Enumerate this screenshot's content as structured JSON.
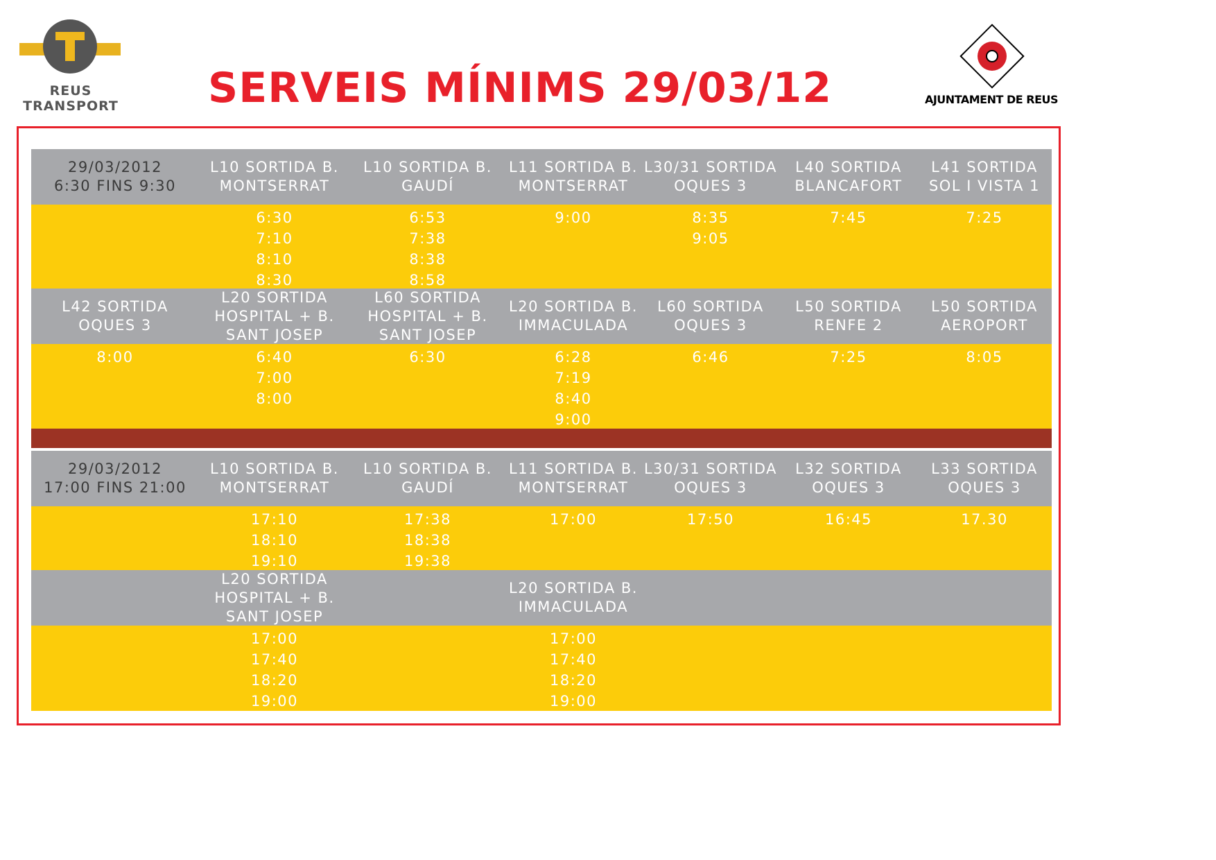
{
  "header": {
    "left_logo": {
      "line1": "REUS",
      "line2": "TRANSPORT"
    },
    "title": "SERVEIS MÍNIMS 29/03/12",
    "right_logo": {
      "label": "AJUNTAMENT DE REUS"
    }
  },
  "colors": {
    "title_red": "#e8202a",
    "frame_red": "#e8202a",
    "header_gray": "#a7a8ab",
    "row_yellow": "#fccc0a",
    "divider_brown": "#9c3324",
    "logo_gray": "#555555",
    "logo_yellow": "#f0b81e"
  },
  "morning": {
    "date": "29/03/2012",
    "range": "6:30 FINS 9:30",
    "block1": {
      "lines": [
        "L10 SORTIDA B. MONTSERRAT",
        "L10 SORTIDA B. GAUDÍ",
        "L11 SORTIDA B. MONTSERRAT",
        "L30/31 SORTIDA OQUES 3",
        "L40 SORTIDA BLANCAFORT",
        "L41 SORTIDA SOL I VISTA 1"
      ],
      "times": [
        [
          "6:30",
          "7:10",
          "8:10",
          "8:30"
        ],
        [
          "6:53",
          "7:38",
          "8:38",
          "8:58"
        ],
        [
          "9:00"
        ],
        [
          "8:35",
          "9:05"
        ],
        [
          "7:45"
        ],
        [
          "7:25"
        ]
      ]
    },
    "block2": {
      "lines": [
        "L42 SORTIDA OQUES 3",
        "L20 SORTIDA HOSPITAL + B. SANT JOSEP",
        "L60 SORTIDA HOSPITAL + B. SANT JOSEP",
        "L20 SORTIDA B. IMMACULADA",
        "L60 SORTIDA OQUES 3",
        "L50 SORTIDA RENFE 2",
        "L50 SORTIDA AEROPORT"
      ],
      "times": [
        [
          "8:00"
        ],
        [
          "6:40",
          "7:00",
          "8:00"
        ],
        [
          "6:30"
        ],
        [
          "6:28",
          "7:19",
          "8:40",
          "9:00"
        ],
        [
          "6:46"
        ],
        [
          "7:25"
        ],
        [
          "8:05"
        ]
      ]
    }
  },
  "evening": {
    "date": "29/03/2012",
    "range": "17:00 FINS 21:00",
    "block1": {
      "lines": [
        "L10 SORTIDA B. MONTSERRAT",
        "L10 SORTIDA B. GAUDÍ",
        "L11 SORTIDA B. MONTSERRAT",
        "L30/31 SORTIDA OQUES 3",
        "L32 SORTIDA OQUES 3",
        "L33 SORTIDA OQUES 3"
      ],
      "times": [
        [
          "17:10",
          "18:10",
          "19:10"
        ],
        [
          "17:38",
          "18:38",
          "19:38"
        ],
        [
          "17:00"
        ],
        [
          "17:50"
        ],
        [
          "16:45"
        ],
        [
          "17.30"
        ]
      ]
    },
    "block2": {
      "lines": [
        "L20 SORTIDA HOSPITAL + B. SANT JOSEP",
        "L20 SORTIDA B. IMMACULADA"
      ],
      "times": [
        [
          "17:00",
          "17:40",
          "18:20",
          "19:00"
        ],
        [
          "17:00",
          "17:40",
          "18:20",
          "19:00"
        ]
      ]
    }
  }
}
